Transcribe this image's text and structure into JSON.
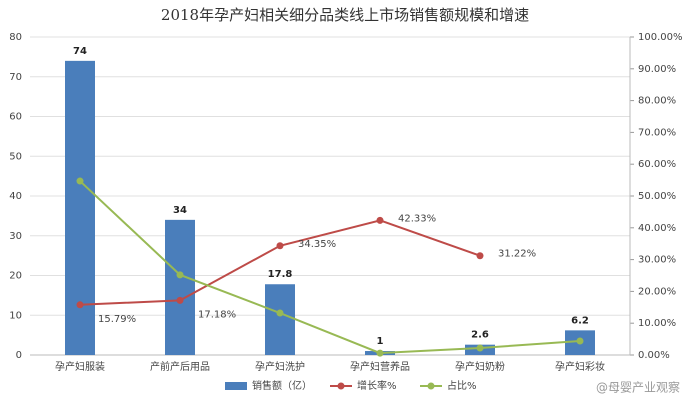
{
  "chart_data": {
    "type": "bar",
    "title": "2018年孕产妇相关细分品类线上市场销售额规模和增速",
    "categories": [
      "孕产妇服装",
      "产前产后用品",
      "孕产妇洗护",
      "孕产妇营养品",
      "孕产妇奶粉",
      "孕产妇彩妆"
    ],
    "series": [
      {
        "name": "销售额（亿）",
        "type": "bar",
        "color": "#4a7ebb",
        "values": [
          74,
          34,
          17.8,
          1,
          2.6,
          6.2
        ]
      },
      {
        "name": "增长率%",
        "type": "line",
        "axis": "y2",
        "color": "#be4b48",
        "values": [
          15.79,
          17.18,
          34.35,
          42.33,
          31.22,
          null
        ],
        "value_labels": [
          "15.79%",
          "17.18%",
          "34.35%",
          "42.33%",
          "31.22%",
          null
        ]
      },
      {
        "name": "占比%",
        "type": "line",
        "axis": "y2",
        "color": "#98b954",
        "values": [
          54.7,
          25.2,
          13.2,
          0.6,
          2.2,
          4.4
        ]
      }
    ],
    "ylim": [
      0,
      80
    ],
    "yticks": [
      0,
      10,
      20,
      30,
      40,
      50,
      60,
      70,
      80
    ],
    "y2lim": [
      0,
      100
    ],
    "y2ticks": [
      {
        "value": 0,
        "label": "0.00%"
      },
      {
        "value": 10,
        "label": "10.00%"
      },
      {
        "value": 20,
        "label": "20.00%"
      },
      {
        "value": 30,
        "label": "30.00%"
      },
      {
        "value": 40,
        "label": "40.00%"
      },
      {
        "value": 50,
        "label": "50.00%"
      },
      {
        "value": 60,
        "label": "60.00%"
      },
      {
        "value": 70,
        "label": "70.00%"
      },
      {
        "value": 80,
        "label": "80.00%"
      },
      {
        "value": 90,
        "label": "90.00%"
      },
      {
        "value": 100,
        "label": "100.00%"
      }
    ],
    "legend": "bottom",
    "watermark": "@母婴产业观察"
  }
}
